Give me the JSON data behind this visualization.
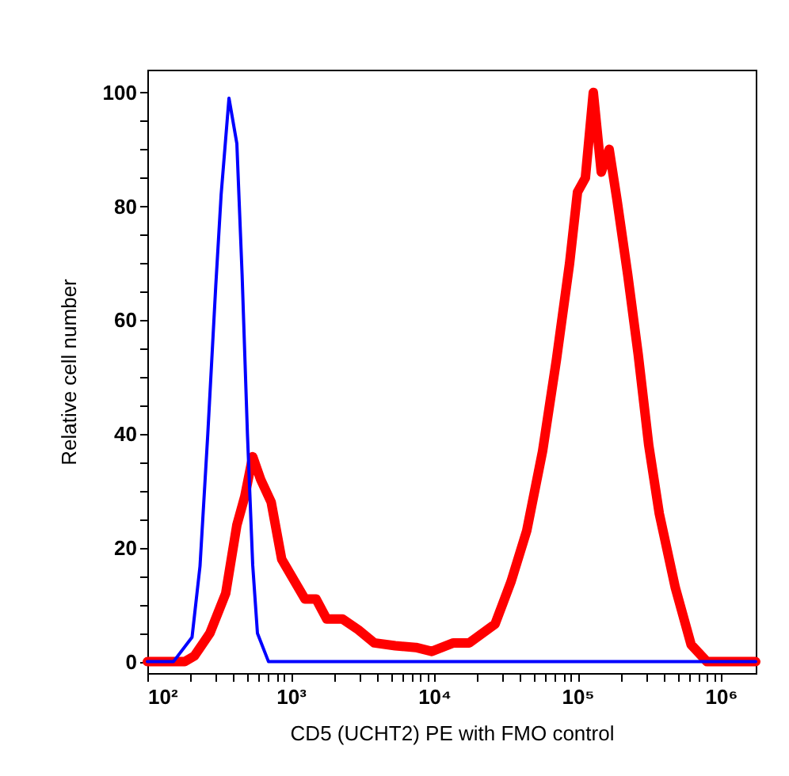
{
  "chart_data": {
    "type": "line",
    "xlabel": "CD5 (UCHT2) PE with FMO control",
    "ylabel": "Relative cell number",
    "log": "x",
    "grid": false,
    "legend": false,
    "marker": "none",
    "line_style": "solid",
    "xlim": [
      100,
      1750000
    ],
    "ylim": [
      -2,
      104
    ],
    "xticks": [
      {
        "value": 100,
        "label": "10²"
      },
      {
        "value": 200,
        "label": null
      },
      {
        "value": 300,
        "label": null
      },
      {
        "value": 400,
        "label": null
      },
      {
        "value": 500,
        "label": null
      },
      {
        "value": 600,
        "label": null
      },
      {
        "value": 700,
        "label": null
      },
      {
        "value": 800,
        "label": null
      },
      {
        "value": 900,
        "label": null
      },
      {
        "value": 1000,
        "label": "10³"
      },
      {
        "value": 2000,
        "label": null
      },
      {
        "value": 3000,
        "label": null
      },
      {
        "value": 4000,
        "label": null
      },
      {
        "value": 5000,
        "label": null
      },
      {
        "value": 6000,
        "label": null
      },
      {
        "value": 7000,
        "label": null
      },
      {
        "value": 8000,
        "label": null
      },
      {
        "value": 9000,
        "label": null
      },
      {
        "value": 10000,
        "label": "10⁴"
      },
      {
        "value": 20000,
        "label": null
      },
      {
        "value": 30000,
        "label": null
      },
      {
        "value": 40000,
        "label": null
      },
      {
        "value": 50000,
        "label": null
      },
      {
        "value": 60000,
        "label": null
      },
      {
        "value": 70000,
        "label": null
      },
      {
        "value": 80000,
        "label": null
      },
      {
        "value": 90000,
        "label": null
      },
      {
        "value": 100000,
        "label": "10⁵"
      },
      {
        "value": 200000,
        "label": null
      },
      {
        "value": 300000,
        "label": null
      },
      {
        "value": 400000,
        "label": null
      },
      {
        "value": 500000,
        "label": null
      },
      {
        "value": 600000,
        "label": null
      },
      {
        "value": 700000,
        "label": null
      },
      {
        "value": 800000,
        "label": null
      },
      {
        "value": 900000,
        "label": null
      },
      {
        "value": 1000000,
        "label": "10⁶"
      }
    ],
    "yticks": [
      0,
      {
        "value": 5,
        "label": null
      },
      {
        "value": 10,
        "label": null
      },
      {
        "value": 15,
        "label": null
      },
      20,
      {
        "value": 25,
        "label": null
      },
      {
        "value": 30,
        "label": null
      },
      {
        "value": 35,
        "label": null
      },
      40,
      {
        "value": 45,
        "label": null
      },
      {
        "value": 50,
        "label": null
      },
      {
        "value": 55,
        "label": null
      },
      60,
      {
        "value": 65,
        "label": null
      },
      {
        "value": 70,
        "label": null
      },
      {
        "value": 75,
        "label": null
      },
      80,
      {
        "value": 85,
        "label": null
      },
      {
        "value": 90,
        "label": null
      },
      {
        "value": 95,
        "label": null
      },
      100
    ],
    "series": [
      {
        "color": "#ff0000",
        "x": [
          100,
          182,
          213,
          273,
          352,
          421,
          478,
          543,
          617,
          731,
          865,
          1071,
          1257,
          1503,
          1782,
          2297,
          2963,
          3822,
          5358,
          7464,
          9623,
          13640,
          17590,
          26610,
          34340,
          44260,
          57100,
          71260,
          88090,
          100000,
          113500,
          128900,
          146500,
          166300,
          188900,
          224000,
          265000,
          314000,
          372000,
          481000,
          620000,
          800000,
          1750000
        ],
        "values": [
          0,
          0,
          1,
          5,
          12,
          24,
          29,
          36,
          32,
          28,
          18,
          14,
          11,
          11,
          7.5,
          7.5,
          5.6,
          3.3,
          2.8,
          2.5,
          1.8,
          3.3,
          3.3,
          6.6,
          14,
          23,
          37,
          53,
          70,
          82.5,
          85,
          100,
          86,
          90,
          81,
          68,
          54,
          38,
          26,
          13,
          3,
          0,
          0
        ]
      },
      {
        "color": "#0000ff",
        "x": [
          100,
          152,
          205,
          233,
          264,
          300,
          327,
          371,
          421,
          458,
          499,
          543,
          586,
          700,
          1750000
        ],
        "values": [
          0,
          0,
          4.3,
          16.8,
          40,
          66,
          82,
          99,
          91,
          68,
          40,
          17,
          5,
          0,
          0
        ]
      }
    ]
  }
}
